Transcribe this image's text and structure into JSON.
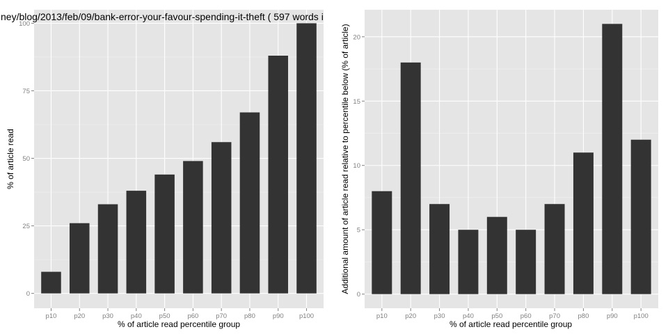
{
  "chart_data": [
    {
      "type": "bar",
      "title": "ney/blog/2013/feb/09/bank-error-your-favour-spending-it-theft ( 597 words i",
      "xlabel": "% of article read percentile group",
      "ylabel": "% of article read",
      "categories": [
        "p10",
        "p20",
        "p30",
        "p40",
        "p50",
        "p60",
        "p70",
        "p80",
        "p90",
        "p100"
      ],
      "values": [
        8,
        26,
        33,
        38,
        44,
        49,
        56,
        67,
        88,
        100
      ],
      "ylim": [
        -5.5,
        105
      ],
      "yticks": [
        0,
        25,
        50,
        75,
        100
      ],
      "grid": true
    },
    {
      "type": "bar",
      "title": "",
      "xlabel": "% of article read percentile group",
      "ylabel": "Additional amount of article read relative to percentile below (% of article)",
      "categories": [
        "p10",
        "p20",
        "p30",
        "p40",
        "p50",
        "p60",
        "p70",
        "p80",
        "p90",
        "p100"
      ],
      "values": [
        8,
        18,
        7,
        5,
        6,
        5,
        7,
        11,
        21,
        12
      ],
      "ylim": [
        -1.1,
        22.1
      ],
      "yticks": [
        0,
        5,
        10,
        15,
        20
      ],
      "grid": true
    }
  ]
}
